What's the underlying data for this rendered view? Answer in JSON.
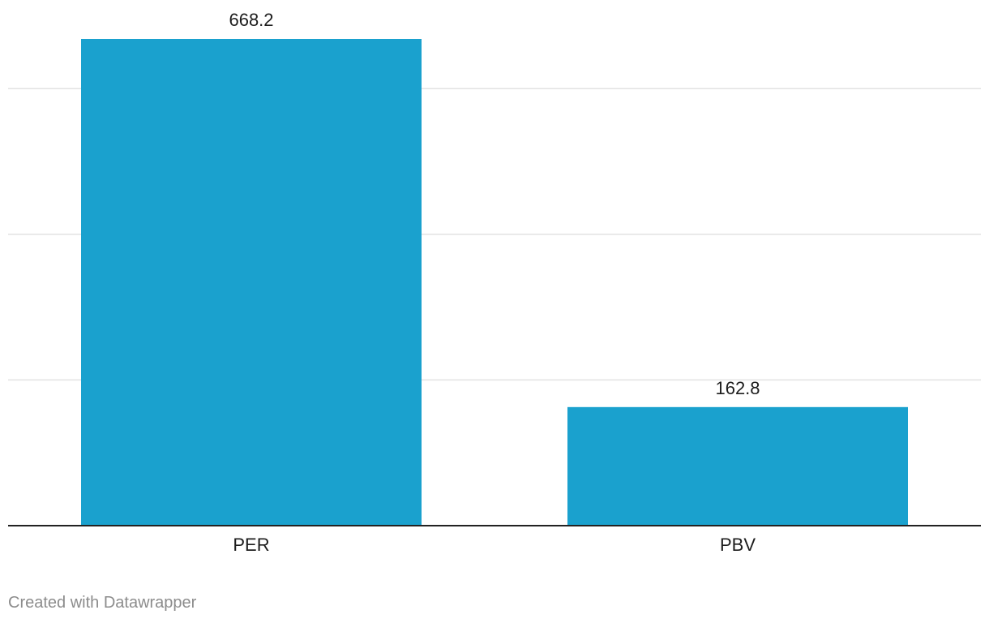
{
  "chart_data": {
    "type": "bar",
    "categories": [
      "PER",
      "PBV"
    ],
    "values": [
      668.2,
      162.8
    ],
    "title": "",
    "xlabel": "",
    "ylabel": "",
    "ylim": [
      0,
      800
    ],
    "grid": true,
    "gridlines": [
      200,
      400,
      600
    ],
    "bar_color": "#1aa1ce",
    "show_value_labels": true
  },
  "footer": {
    "credit": "Created with Datawrapper"
  }
}
